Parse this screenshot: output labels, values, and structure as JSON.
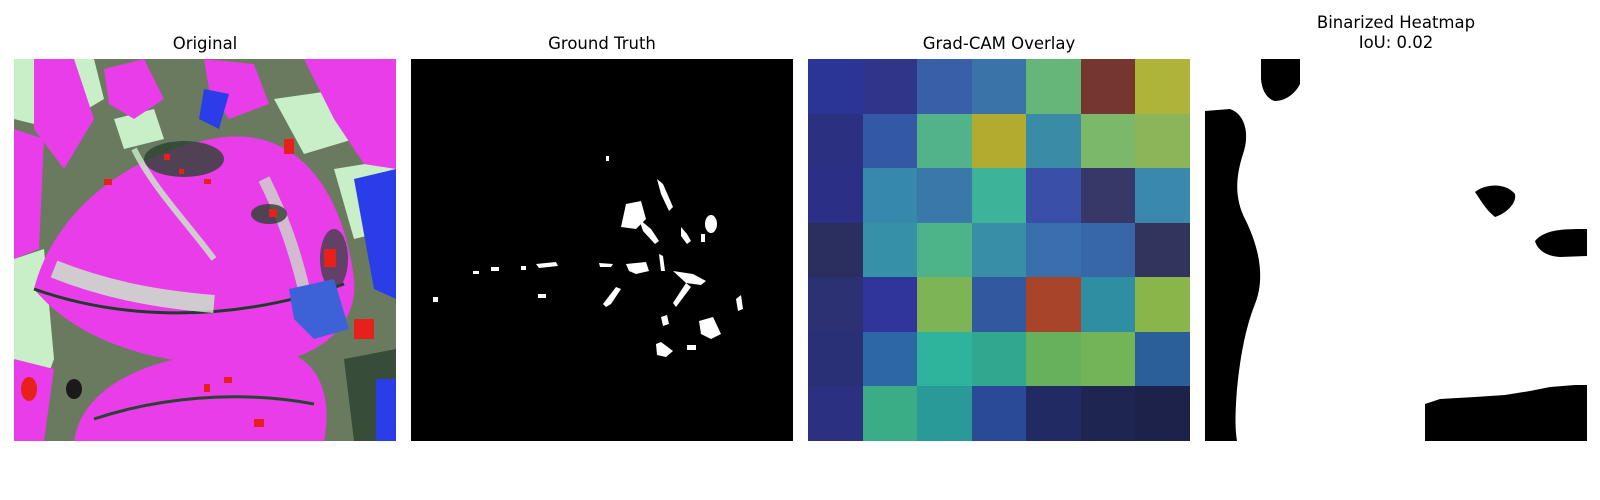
{
  "panels": [
    {
      "title": "Original"
    },
    {
      "title": "Ground Truth"
    },
    {
      "title": "Grad-CAM Overlay"
    },
    {
      "title": "Binarized Heatmap\nIoU: 0.02"
    }
  ],
  "gradcam_grid": [
    [
      "#2b3596",
      "#30358a",
      "#3a5fa9",
      "#3a73a8",
      "#66b67a",
      "#753630",
      "#aeb33a"
    ],
    [
      "#2b3180",
      "#3359a6",
      "#52b388",
      "#b3ab30",
      "#3a8ba6",
      "#7cb86a",
      "#8ab558"
    ],
    [
      "#2c2f86",
      "#3689ad",
      "#3a78aa",
      "#3db49a",
      "#3a4fa8",
      "#383868",
      "#3a89ad"
    ],
    [
      "#2a2f60",
      "#3690a8",
      "#4db48a",
      "#378ea6",
      "#3a6fad",
      "#3867a8",
      "#33345e"
    ],
    [
      "#2b3172",
      "#30359c",
      "#7db455",
      "#3258a0",
      "#a74429",
      "#2f8fa2",
      "#8ab54a"
    ],
    [
      "#2a3076",
      "#2d68a4",
      "#2eb39c",
      "#30a78e",
      "#67b05c",
      "#74b458",
      "#2a5f99"
    ],
    [
      "#2b3180",
      "#3bad86",
      "#2a9a98",
      "#2a4a98",
      "#212a63",
      "#1e2551",
      "#1c2249"
    ]
  ],
  "colors": {
    "magenta": "#e83de8",
    "pale_green": "#c8f0c6",
    "dark_olive": "#5b6b52",
    "blue": "#2a3de8",
    "red": "#e8201c",
    "black": "#000000",
    "white": "#ffffff"
  }
}
